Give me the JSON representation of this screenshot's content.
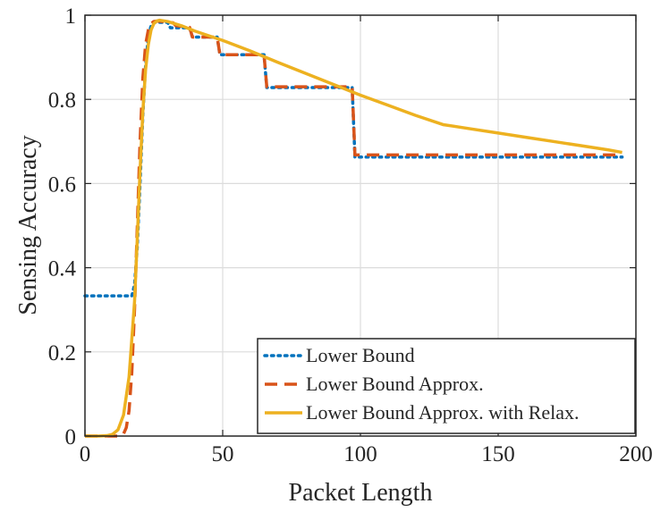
{
  "chart_data": {
    "type": "line",
    "title": "",
    "xlabel": "Packet Length",
    "ylabel": "Sensing Accuracy",
    "xlim": [
      0,
      200
    ],
    "ylim": [
      0,
      1
    ],
    "xticks": [
      0,
      50,
      100,
      150,
      200
    ],
    "xtick_labels": [
      "0",
      "50",
      "100",
      "150",
      "200"
    ],
    "yticks": [
      0,
      0.2,
      0.4,
      0.6,
      0.8,
      1
    ],
    "ytick_labels": [
      "0",
      "0.2",
      "0.4",
      "0.6",
      "0.8",
      "1"
    ],
    "grid": true,
    "legend_position": "bottom-right",
    "series": [
      {
        "name": "Lower Bound",
        "color": "#0072BD",
        "style": "dotted",
        "x": [
          0,
          17,
          18,
          19,
          20,
          21,
          22,
          23,
          24,
          25,
          26,
          27,
          28,
          30,
          31,
          32,
          38,
          39,
          48,
          49,
          65,
          66,
          97,
          98,
          195
        ],
        "y": [
          0.333,
          0.333,
          0.36,
          0.45,
          0.6,
          0.76,
          0.88,
          0.95,
          0.975,
          0.983,
          0.983,
          0.983,
          0.983,
          0.983,
          0.97,
          0.97,
          0.97,
          0.948,
          0.948,
          0.906,
          0.906,
          0.828,
          0.828,
          0.663,
          0.663
        ]
      },
      {
        "name": "Lower Bound Approx.",
        "color": "#D95319",
        "style": "dashed",
        "x": [
          0,
          12,
          14,
          15,
          16,
          17,
          18,
          19,
          20,
          21,
          22,
          23,
          24,
          25,
          26,
          28,
          30,
          32,
          33,
          36,
          38,
          39,
          48,
          49,
          65,
          66,
          97,
          98,
          195
        ],
        "y": [
          0.0,
          0.0,
          0.005,
          0.02,
          0.06,
          0.15,
          0.3,
          0.5,
          0.7,
          0.85,
          0.93,
          0.965,
          0.98,
          0.985,
          0.986,
          0.985,
          0.983,
          0.982,
          0.975,
          0.973,
          0.971,
          0.948,
          0.948,
          0.906,
          0.906,
          0.83,
          0.83,
          0.668,
          0.668
        ]
      },
      {
        "name": "Lower Bound Approx. with Relax.",
        "color": "#EDB120",
        "style": "solid",
        "x": [
          0,
          5,
          8,
          10,
          12,
          14,
          16,
          18,
          19,
          20,
          21,
          22,
          23,
          24,
          25,
          26,
          27,
          30,
          35,
          40,
          50,
          60,
          70,
          80,
          90,
          100,
          110,
          120,
          130,
          140,
          150,
          160,
          170,
          180,
          190,
          195
        ],
        "y": [
          0.0,
          0.0,
          0.001,
          0.004,
          0.015,
          0.05,
          0.14,
          0.32,
          0.47,
          0.63,
          0.77,
          0.87,
          0.93,
          0.965,
          0.98,
          0.986,
          0.988,
          0.985,
          0.975,
          0.962,
          0.94,
          0.915,
          0.888,
          0.862,
          0.836,
          0.81,
          0.786,
          0.762,
          0.74,
          0.73,
          0.72,
          0.71,
          0.7,
          0.69,
          0.68,
          0.674
        ]
      }
    ]
  }
}
